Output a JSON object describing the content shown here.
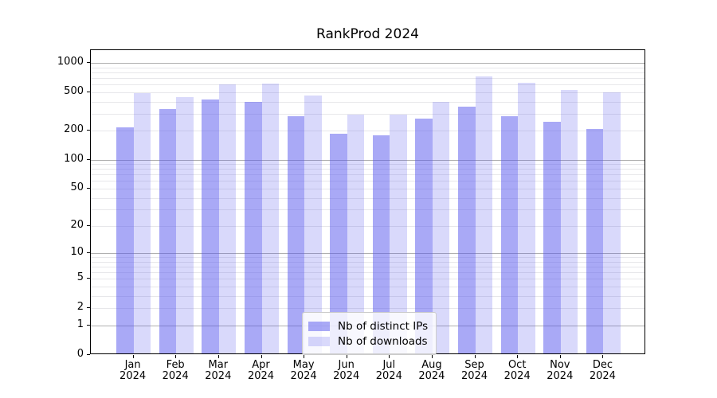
{
  "title": "RankProd 2024",
  "chart_data": {
    "type": "bar",
    "title": "RankProd 2024",
    "scale": "log10(x+1)",
    "categories": [
      "Jan",
      "Feb",
      "Mar",
      "Apr",
      "May",
      "Jun",
      "Jul",
      "Aug",
      "Sep",
      "Oct",
      "Nov",
      "Dec"
    ],
    "category_year": "2024",
    "series": [
      {
        "name": "Nb of distinct IPs",
        "color": "rgba(84,84,238,0.5)",
        "values": [
          210,
          323,
          407,
          384,
          274,
          182,
          174,
          257,
          347,
          275,
          242,
          204
        ]
      },
      {
        "name": "Nb of downloads",
        "color": "rgba(84,84,238,0.22)",
        "values": [
          475,
          435,
          580,
          600,
          450,
          287,
          287,
          385,
          700,
          605,
          510,
          480
        ]
      }
    ],
    "yticks": [
      0,
      1,
      2,
      5,
      10,
      20,
      50,
      100,
      200,
      500,
      1000
    ],
    "ylim": [
      0,
      1380
    ],
    "xlabel": "",
    "ylabel": "",
    "grid": "horizontal",
    "legend_position": "lower center"
  },
  "colors": {
    "major_gridline": "#b0b0b0",
    "minor_gridline": "#e7e7ea",
    "spine": "#000000",
    "background": "#ffffff"
  }
}
